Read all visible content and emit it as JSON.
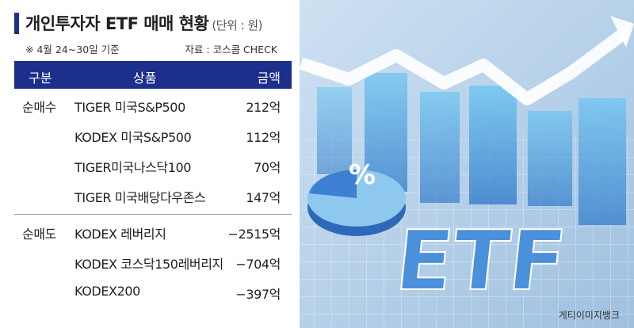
{
  "title": "개인투자자 ETF 매매 현황",
  "unit": "(단위 : 원)",
  "note": "※ 4월 24~30일 기준",
  "source": "자료 : 코스콤 CHECK",
  "table": {
    "headers": [
      "구분",
      "상품",
      "금액"
    ],
    "rows": [
      {
        "category": "순매수",
        "product": "TIGER 미국S&P500",
        "amount": "212억"
      },
      {
        "category": "",
        "product": "KODEX 미국S&P500",
        "amount": "112억"
      },
      {
        "category": "",
        "product": "TIGER미국나스닥100",
        "amount": "70억"
      },
      {
        "category": "",
        "product": "TIGER 미국배당다우존스",
        "amount": "147억"
      },
      {
        "category": "순매도",
        "product": "KODEX 레버리지",
        "amount": "−2515억"
      },
      {
        "category": "",
        "product": "KODEX 코스닥150레버리지",
        "amount": "−704억"
      },
      {
        "category": "",
        "product": "KODEX200",
        "amount": "−397억"
      }
    ]
  },
  "illustration_text": "ETF",
  "credit": "게티이미지뱅크",
  "colors": {
    "header_bg": "#1c2f8c",
    "accent_blue": "#3b8fd8"
  }
}
